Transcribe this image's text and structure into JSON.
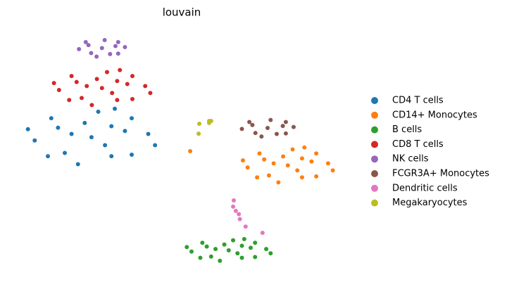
{
  "chart_data": {
    "type": "scatter",
    "title": "louvain",
    "xlim": [
      0,
      100
    ],
    "ylim": [
      0,
      100
    ],
    "series": [
      {
        "name": "CD4 T cells",
        "color": "#1f77b4",
        "x": [
          22.9,
          32.8,
          13.0,
          28.8,
          15.0,
          39.7,
          6.1,
          24.9,
          18.9,
          34.8,
          11.0,
          34.8,
          10.0,
          41.7,
          4.1,
          28.8,
          17.0,
          26.9,
          29.8,
          20.9
        ],
        "y": [
          56.3,
          58.8,
          60.1,
          48.7,
          50.0,
          57.6,
          55.0,
          66.5,
          45.5,
          63.9,
          63.9,
          49.3,
          48.7,
          53.1,
          59.5,
          60.7,
          57.6,
          53.1,
          67.7,
          62.0
        ]
      },
      {
        "name": "CD14+ Monocytes",
        "color": "#ff7f0e",
        "x": [
          81,
          88,
          74,
          85.2,
          75.4,
          92.9,
          69.1,
          82.4,
          78.2,
          89.4,
          72.6,
          89.4,
          71.9,
          94.3,
          67.7,
          85.2,
          76.8,
          83.8,
          85.9,
          79.6,
          52.1
        ],
        "y": [
          45,
          46.6,
          47.4,
          40.2,
          41,
          45.8,
          44.2,
          51.4,
          38.2,
          49.8,
          49.8,
          40.6,
          40.2,
          43,
          47,
          47.8,
          45.8,
          43,
          52.2,
          48.6,
          50.7
        ]
      },
      {
        "name": "B cells",
        "color": "#2ca02c",
        "x": [
          63.5,
          70,
          57,
          67.4,
          58.3,
          74.6,
          52.5,
          64.8,
          60.9,
          71.3,
          55.7,
          71.3,
          55.1,
          75.9,
          51.1,
          67.4,
          59.6,
          66.1,
          68.1,
          62.2
        ],
        "y": [
          11,
          12,
          12.5,
          8,
          8.5,
          11.5,
          10.5,
          15,
          6.8,
          14,
          14,
          8.3,
          8,
          9.8,
          12.3,
          12.8,
          11.5,
          9.8,
          15.5,
          13.3
        ]
      },
      {
        "name": "CD8 T cells",
        "color": "#d62728",
        "x": [
          26,
          33.5,
          18.5,
          30.5,
          20,
          38.8,
          13.3,
          27.5,
          23,
          35,
          17,
          35,
          16.3,
          40.3,
          11.8,
          30.5,
          21.5,
          29,
          31.3,
          24.5
        ],
        "y": [
          76,
          77.6,
          78.4,
          71.2,
          72,
          76.8,
          75.2,
          82.4,
          69.2,
          80.8,
          80.8,
          71.6,
          71.2,
          74,
          78,
          78.8,
          76.8,
          74,
          83.2,
          79.6
        ]
      },
      {
        "name": "NK cells",
        "color": "#9467bd",
        "x": [
          26,
          30,
          22,
          28.4,
          22.8,
          32.8,
          19.2,
          26.8,
          24.4,
          30.8,
          21.2,
          30.8
        ],
        "y": [
          92,
          92.8,
          93.2,
          89.6,
          90,
          92.4,
          91.6,
          95.2,
          88.6,
          94.4,
          94.4,
          89.8
        ]
      },
      {
        "name": "FCGR3A+ Monocytes",
        "color": "#8c564b",
        "x": [
          75,
          79.5,
          70.5,
          77.7,
          71.4,
          82.7,
          67.4,
          75.9,
          73.2,
          80.4,
          69.6,
          80.4
        ],
        "y": [
          60,
          60.8,
          61.2,
          57.6,
          58,
          60.4,
          59.6,
          63.2,
          56.6,
          62.4,
          62.4,
          57.8
        ]
      },
      {
        "name": "Dendritic cells",
        "color": "#e377c2",
        "x": [
          65.6,
          64.8,
          66.5,
          65,
          66.8,
          73.5,
          68.5
        ],
        "y": [
          26.8,
          28.5,
          25.5,
          31,
          23.5,
          18,
          20.5
        ]
      },
      {
        "name": "Megakaryocytes",
        "color": "#bcbd22",
        "x": [
          58.3,
          57.7,
          54.8,
          54.6,
          57.7
        ],
        "y": [
          62.8,
          62,
          61.7,
          57.7,
          62.8
        ]
      }
    ]
  }
}
